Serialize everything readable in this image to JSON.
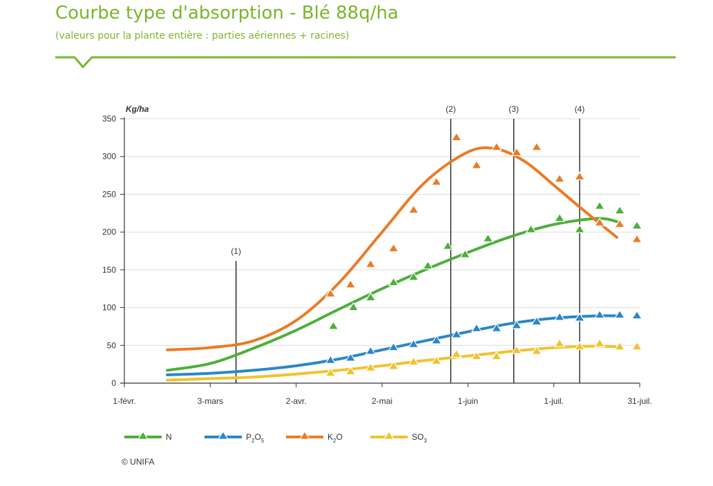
{
  "header": {
    "title": "Courbe type d'absorption - Blé 88q/ha",
    "subtitle": "(valeurs pour la plante entière : parties aériennes + racines)"
  },
  "chart_data": {
    "type": "line",
    "title": "Courbe type d'absorption - Blé 88q/ha",
    "ylabel": "Kg/ha",
    "xlabel": "",
    "x_unit": "days since 1-févr.",
    "ylim": [
      0,
      350
    ],
    "xlim": [
      0,
      180
    ],
    "y_ticks": [
      0,
      50,
      100,
      150,
      200,
      250,
      300,
      350
    ],
    "x_ticks": [
      {
        "day": 0,
        "label": "1-févr."
      },
      {
        "day": 30,
        "label": "3-mars"
      },
      {
        "day": 60,
        "label": "2-avr."
      },
      {
        "day": 90,
        "label": "2-mai"
      },
      {
        "day": 120,
        "label": "1-juin"
      },
      {
        "day": 150,
        "label": "1-juil."
      },
      {
        "day": 180,
        "label": "31-juil."
      }
    ],
    "grid": true,
    "stages": [
      {
        "label": "(1)",
        "day": 39
      },
      {
        "label": "(2)",
        "day": 114
      },
      {
        "label": "(3)",
        "day": 136
      },
      {
        "label": "(4)",
        "day": 159
      }
    ],
    "series": [
      {
        "name": "N",
        "sub": "",
        "color": "#4caf3a",
        "curve_x": [
          15,
          30,
          45,
          60,
          75,
          90,
          105,
          120,
          135,
          150,
          165,
          172
        ],
        "curve_y": [
          17,
          26,
          46,
          70,
          98,
          125,
          150,
          173,
          194,
          210,
          218,
          214
        ],
        "points_x": [
          73,
          80,
          86,
          94,
          101,
          106,
          113,
          119,
          127,
          142,
          152,
          159,
          166,
          173,
          179
        ],
        "points_y": [
          75,
          100,
          113,
          133,
          140,
          155,
          181,
          170,
          191,
          203,
          218,
          203,
          234,
          228,
          208
        ]
      },
      {
        "name": "P",
        "sub": "2",
        "suffix": "O",
        "sub2": "5",
        "color": "#2b86c9",
        "curve_x": [
          15,
          30,
          45,
          60,
          75,
          90,
          105,
          120,
          135,
          150,
          165,
          172
        ],
        "curve_y": [
          11,
          13,
          17,
          23,
          32,
          44,
          56,
          68,
          79,
          86,
          89,
          89
        ],
        "points_x": [
          72,
          79,
          86,
          94,
          101,
          109,
          116,
          123,
          130,
          137,
          144,
          152,
          159,
          166,
          173,
          179
        ],
        "points_y": [
          30,
          33,
          42,
          47,
          51,
          56,
          64,
          72,
          72,
          76,
          81,
          87,
          86,
          90,
          90,
          89
        ]
      },
      {
        "name": "K",
        "sub": "2",
        "suffix": "O",
        "sub2": "",
        "color": "#ec7a23",
        "curve_x": [
          15,
          30,
          45,
          60,
          75,
          90,
          105,
          120,
          130,
          140,
          150,
          160,
          172
        ],
        "curve_y": [
          44,
          47,
          56,
          83,
          133,
          200,
          266,
          306,
          310,
          293,
          262,
          230,
          193
        ],
        "points_x": [
          72,
          79,
          86,
          94,
          101,
          109,
          116,
          123,
          130,
          137,
          144,
          152,
          159,
          166,
          173,
          179
        ],
        "points_y": [
          118,
          130,
          157,
          178,
          229,
          266,
          325,
          288,
          312,
          305,
          312,
          270,
          273,
          212,
          210,
          190
        ]
      },
      {
        "name": "SO",
        "sub": "3",
        "suffix": "",
        "sub2": "",
        "color": "#f2c22e",
        "curve_x": [
          15,
          30,
          45,
          60,
          75,
          90,
          105,
          120,
          135,
          150,
          165,
          172
        ],
        "curve_y": [
          4,
          6,
          8,
          12,
          17,
          23,
          30,
          36,
          42,
          47,
          49,
          48
        ],
        "points_x": [
          72,
          79,
          86,
          94,
          101,
          109,
          116,
          123,
          130,
          137,
          144,
          152,
          159,
          166,
          173,
          179
        ],
        "points_y": [
          13,
          15,
          20,
          22,
          28,
          29,
          38,
          35,
          35,
          43,
          42,
          52,
          48,
          52,
          48,
          48
        ]
      }
    ]
  },
  "legend": {
    "items": [
      {
        "base": "N",
        "sub": "",
        "tail": "",
        "color": "#4caf3a"
      },
      {
        "base": "P",
        "sub": "2",
        "tail": "O",
        "tail_sub": "5",
        "color": "#2b86c9"
      },
      {
        "base": "K",
        "sub": "2",
        "tail": "O",
        "tail_sub": "",
        "color": "#ec7a23"
      },
      {
        "base": "SO",
        "sub": "3",
        "tail": "",
        "tail_sub": "",
        "color": "#f2c22e"
      }
    ]
  },
  "footer": {
    "copyright": "© UNIFA"
  },
  "colors": {
    "accent": "#7ab62a",
    "grid": "#dcdcdc",
    "axis": "#333333"
  }
}
